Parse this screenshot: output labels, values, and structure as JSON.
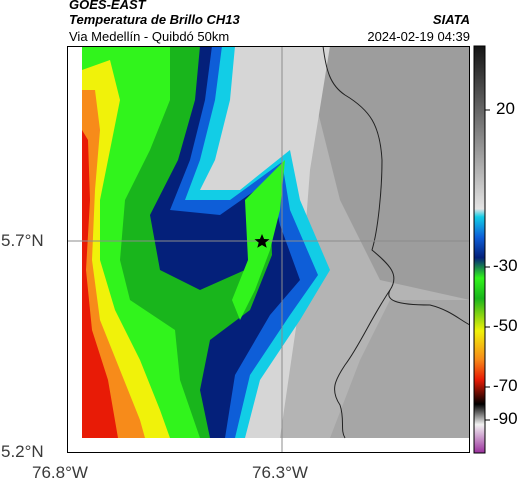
{
  "header": {
    "satellite": "GOES-EAST",
    "product": "Temperatura de Brillo CH13",
    "route": "Via Medellín - Quibdó 50km",
    "agency": "SIATA",
    "datetime": "2024-02-19 04:39"
  },
  "map": {
    "latitude_labels": [
      "5.7°N",
      "5.2°N"
    ],
    "longitude_labels": [
      "76.8°W",
      "76.3°W"
    ],
    "marker": "star",
    "gridlines": true
  },
  "colorbar": {
    "tick_labels": [
      "20",
      "-30",
      "-50",
      "-70",
      "-90"
    ],
    "colors": {
      "cold_extreme": "#9a2f9c",
      "white": "#f2f2f2",
      "black": "#000000",
      "red": "#e81b06",
      "orange": "#f78b1a",
      "yellow": "#f0f20a",
      "green": "#19b51c",
      "bright_green": "#31f41c",
      "navy": "#04207a",
      "blue": "#0e5ed8",
      "cyan": "#12cde6",
      "light_gray": "#e3e3e3",
      "dark_gray": "#151515"
    }
  }
}
